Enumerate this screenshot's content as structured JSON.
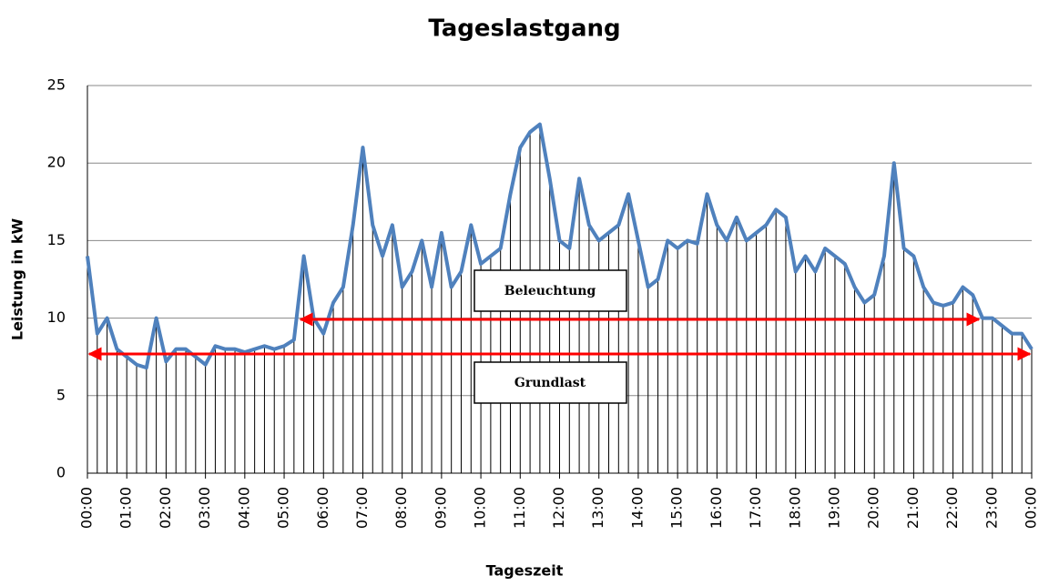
{
  "chart_data": {
    "type": "line",
    "title": "Tageslastgang",
    "x_label": "Tageszeit",
    "y_label": "Leistung in kW",
    "categories": [
      "00:00",
      null,
      null,
      null,
      "01:00",
      null,
      null,
      null,
      "02:00",
      null,
      null,
      null,
      "03:00",
      null,
      null,
      null,
      "04:00",
      null,
      null,
      null,
      "05:00",
      null,
      null,
      null,
      "06:00",
      null,
      null,
      null,
      "07:00",
      null,
      null,
      null,
      "08:00",
      null,
      null,
      null,
      "09:00",
      null,
      null,
      null,
      "10:00",
      null,
      null,
      null,
      "11:00",
      null,
      null,
      null,
      "12:00",
      null,
      null,
      null,
      "13:00",
      null,
      null,
      null,
      "14:00",
      null,
      null,
      null,
      "15:00",
      null,
      null,
      null,
      "16:00",
      null,
      null,
      null,
      "17:00",
      null,
      null,
      null,
      "18:00",
      null,
      null,
      null,
      "19:00",
      null,
      null,
      null,
      "20:00",
      null,
      null,
      null,
      "21:00",
      null,
      null,
      null,
      "22:00",
      null,
      null,
      null,
      "23:00",
      null,
      null,
      null,
      "00:00"
    ],
    "series": [
      {
        "name": "Leistung",
        "color": "#4f81bd",
        "values": [
          14,
          9,
          10,
          8,
          7.5,
          7,
          6.8,
          10,
          7.2,
          8,
          8,
          7.5,
          7,
          8.2,
          8,
          8,
          7.8,
          8,
          8.2,
          8,
          8.2,
          8.6,
          14,
          10,
          9,
          11,
          12,
          16,
          21,
          16,
          14,
          16,
          12,
          13,
          15,
          12,
          15.5,
          12,
          13,
          16,
          13.5,
          14,
          14.5,
          18,
          21,
          22,
          22.5,
          19,
          15,
          14.5,
          19,
          16,
          15,
          15.5,
          16,
          18,
          15,
          12,
          12.5,
          15,
          14.5,
          15,
          14.8,
          18,
          16,
          15,
          16.5,
          15,
          15.5,
          16,
          17,
          16.5,
          13,
          14,
          13,
          14.5,
          14,
          13.5,
          12,
          11,
          11.5,
          14,
          20,
          14.5,
          14,
          12,
          11,
          10.8,
          11,
          12,
          11.5,
          10,
          10,
          9.5,
          9,
          9,
          8
        ]
      }
    ],
    "ylim": [
      0,
      25
    ],
    "yticks": [
      0,
      5,
      10,
      15,
      20,
      25
    ],
    "grid": true,
    "drop_lines": true,
    "annotations": [
      "Beleuchtung",
      "Grundlast"
    ]
  }
}
